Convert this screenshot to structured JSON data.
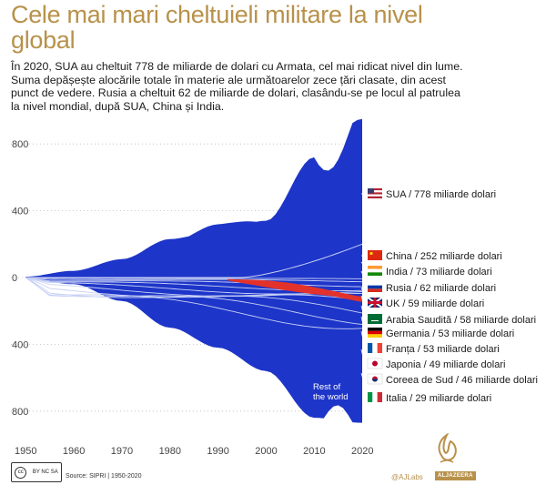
{
  "title": "Cele mai mari cheltuieli militare la nivel global",
  "subtitle": "În 2020, SUA au cheltuit 778 de miliarde de dolari cu Armata, cel mai ridicat nivel din lume. Suma depășește alocările totale în materie ale următoarelor zece țări clasate, din acest punct de vedere. Rusia a cheltuit 62 de miliarde de dolari, clasându-se pe locul al patrulea la nivel mondial, după SUA, China și India.",
  "chart_data": {
    "type": "area",
    "title": "Cele mai mari cheltuieli militare la nivel global",
    "x": [
      1950,
      1960,
      1970,
      1980,
      1990,
      2000,
      2010,
      2020
    ],
    "x_ticks": [
      "1950",
      "1960",
      "1970",
      "1980",
      "1990",
      "2000",
      "2010",
      "2020"
    ],
    "y_ticks": [
      "800",
      "400",
      "0",
      "400",
      "800"
    ],
    "ylim": [
      -900,
      950
    ],
    "annotation": "Rest of the world",
    "colors": {
      "usa": "#1d35c8",
      "russia": "#e2322b",
      "separator": "#c7d0f5"
    },
    "usa_upper": [
      5,
      40,
      110,
      230,
      280,
      340,
      720,
      950
    ],
    "world_lower": [
      -5,
      -40,
      -140,
      -300,
      -420,
      -560,
      -840,
      -870
    ],
    "series": [
      {
        "name": "SUA",
        "label": "SUA / 778 miliarde dolari",
        "value_2020": 778,
        "flag": "us"
      },
      {
        "name": "China",
        "label": "China / 252 miliarde dolari",
        "value_2020": 252,
        "flag": "cn"
      },
      {
        "name": "India",
        "label": "India / 73 miliarde dolari",
        "value_2020": 73,
        "flag": "in"
      },
      {
        "name": "Rusia",
        "label": "Rusia / 62 miliarde dolari",
        "value_2020": 62,
        "flag": "ru"
      },
      {
        "name": "UK",
        "label": "UK / 59 miliarde dolari",
        "value_2020": 59,
        "flag": "uk"
      },
      {
        "name": "Arabia Saudită",
        "label": "Arabia Saudită / 58 miliarde dolari",
        "value_2020": 58,
        "flag": "sa"
      },
      {
        "name": "Germania",
        "label": "Germania / 53 miliarde dolari",
        "value_2020": 53,
        "flag": "de"
      },
      {
        "name": "Franța",
        "label": "Franța / 53 miliarde dolari",
        "value_2020": 53,
        "flag": "fr"
      },
      {
        "name": "Japonia",
        "label": "Japonia / 49 miliarde dolari",
        "value_2020": 49,
        "flag": "jp"
      },
      {
        "name": "Coreea de Sud",
        "label": "Coreea de Sud / 46 miliarde dolari",
        "value_2020": 46,
        "flag": "kr"
      },
      {
        "name": "Italia",
        "label": "Italia / 29 miliarde dolari",
        "value_2020": 29,
        "flag": "it"
      }
    ]
  },
  "footer": {
    "license_top": "cc",
    "license": "BY  NC  SA",
    "source": "Source: SIPRI | 1950-2020",
    "credit": "@AJLabs",
    "brand": "ALJAZEERA"
  }
}
